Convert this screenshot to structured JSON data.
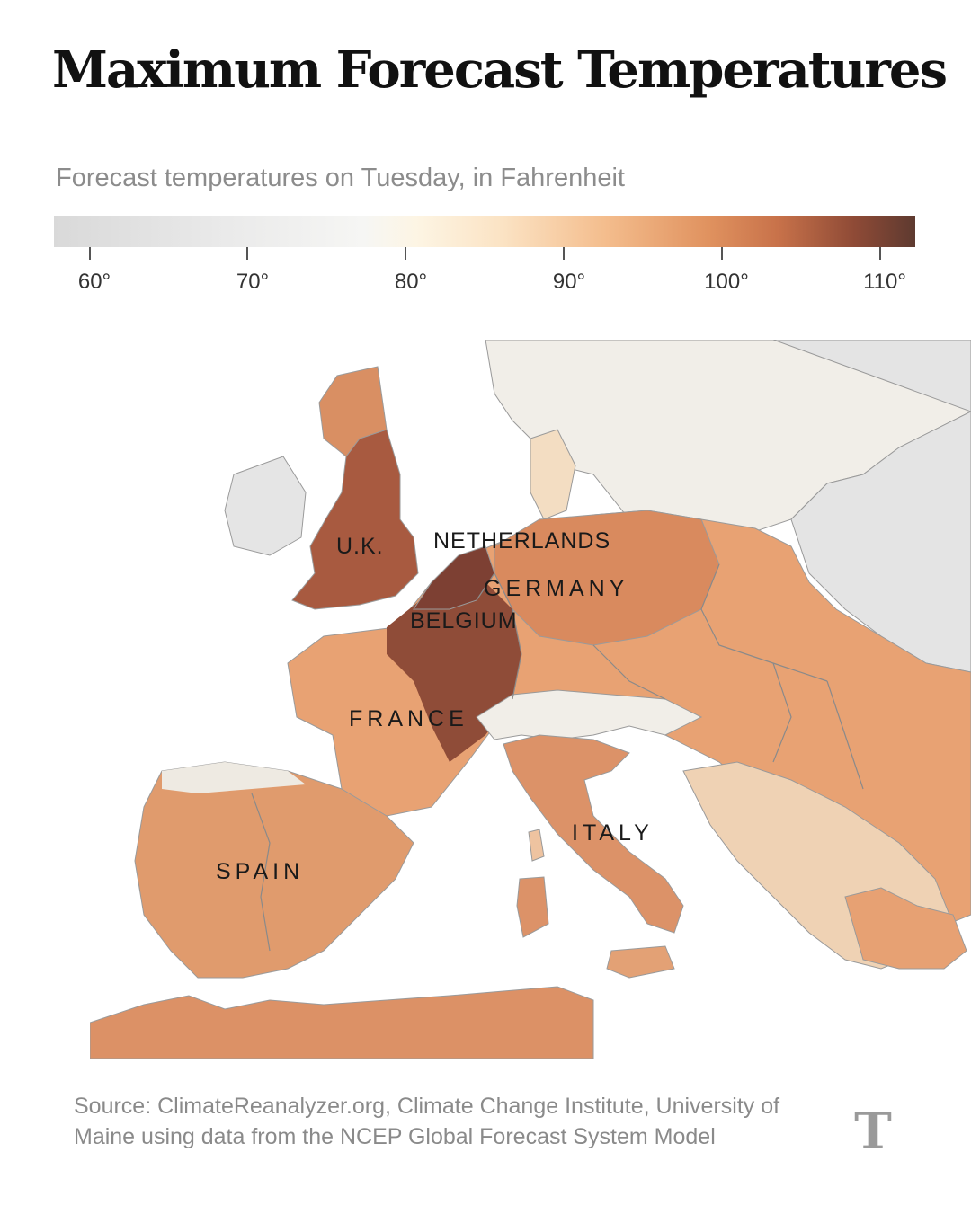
{
  "title": "Maximum Forecast Temperatures",
  "subtitle": "Forecast temperatures on Tuesday, in Fahrenheit",
  "legend": {
    "ticks": [
      "60°",
      "70°",
      "80°",
      "90°",
      "100°",
      "110°"
    ],
    "colors": [
      "#d9d9d9",
      "#eaeaea",
      "#f6f6f4",
      "#fbe3c4",
      "#f4bd8d",
      "#e0925f",
      "#c8724a",
      "#8e4a36",
      "#5e3a30"
    ]
  },
  "map": {
    "labels": {
      "uk": "U.K.",
      "netherlands": "NETHERLANDS",
      "germany": "GERMANY",
      "belgium": "BELGIUM",
      "france": "FRANCE",
      "italy": "ITALY",
      "spain": "SPAIN"
    },
    "colors": {
      "sea": "#ffffff",
      "cool": "#e6e6e6",
      "mild": "#f5eee3",
      "warm": "#e9ad7c",
      "hot": "#d0805a",
      "hottest": "#8c4a37",
      "border": "#8a8a8a"
    }
  },
  "source": "Source: ClimateReanalyzer.org, Climate Change Institute, University of Maine using data from the NCEP Global Forecast System Model",
  "logo_icon": "nyt-logo-icon"
}
